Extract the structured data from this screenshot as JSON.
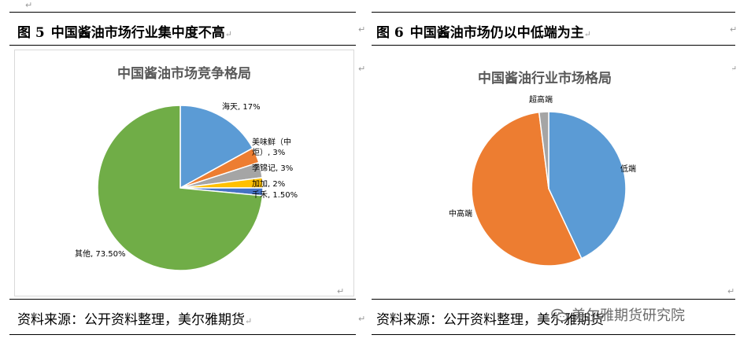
{
  "left": {
    "figure_number": "图 5",
    "figure_title": "中国酱油市场行业集中度不高",
    "source": "资料来源：公开资料整理，美尔雅期货"
  },
  "right": {
    "figure_number": "图 6",
    "figure_title": "中国酱油市场仍以中低端为主",
    "source": "资料来源：公开资料整理，美尔雅期货"
  },
  "watermark": {
    "text": "美尔雅期货研究院",
    "icon": "wechat-icon"
  },
  "chart_data": [
    {
      "type": "pie",
      "title": "中国酱油市场竞争格局",
      "labels": [
        "海天",
        "美味鲜（中炬）",
        "李锦记",
        "加加",
        "千禾",
        "其他"
      ],
      "label_text": [
        "海天, 17%",
        "美味鲜（中炬）, 3%",
        "李锦记, 3%",
        "加加, 2%",
        "千禾, 1.50%",
        "其他, 73.50%"
      ],
      "values": [
        17,
        3,
        3,
        2,
        1.5,
        73.5
      ],
      "colors": [
        "#5b9bd5",
        "#ed7d31",
        "#a5a5a5",
        "#ffc000",
        "#4472c4",
        "#70ad47"
      ],
      "legend": "none"
    },
    {
      "type": "pie",
      "title": "中国酱油行业市场格局",
      "labels": [
        "低端",
        "中高端",
        "超高端"
      ],
      "values": [
        43,
        55,
        2
      ],
      "colors": [
        "#5b9bd5",
        "#ed7d31",
        "#a5a5a5"
      ],
      "legend": "none"
    }
  ]
}
